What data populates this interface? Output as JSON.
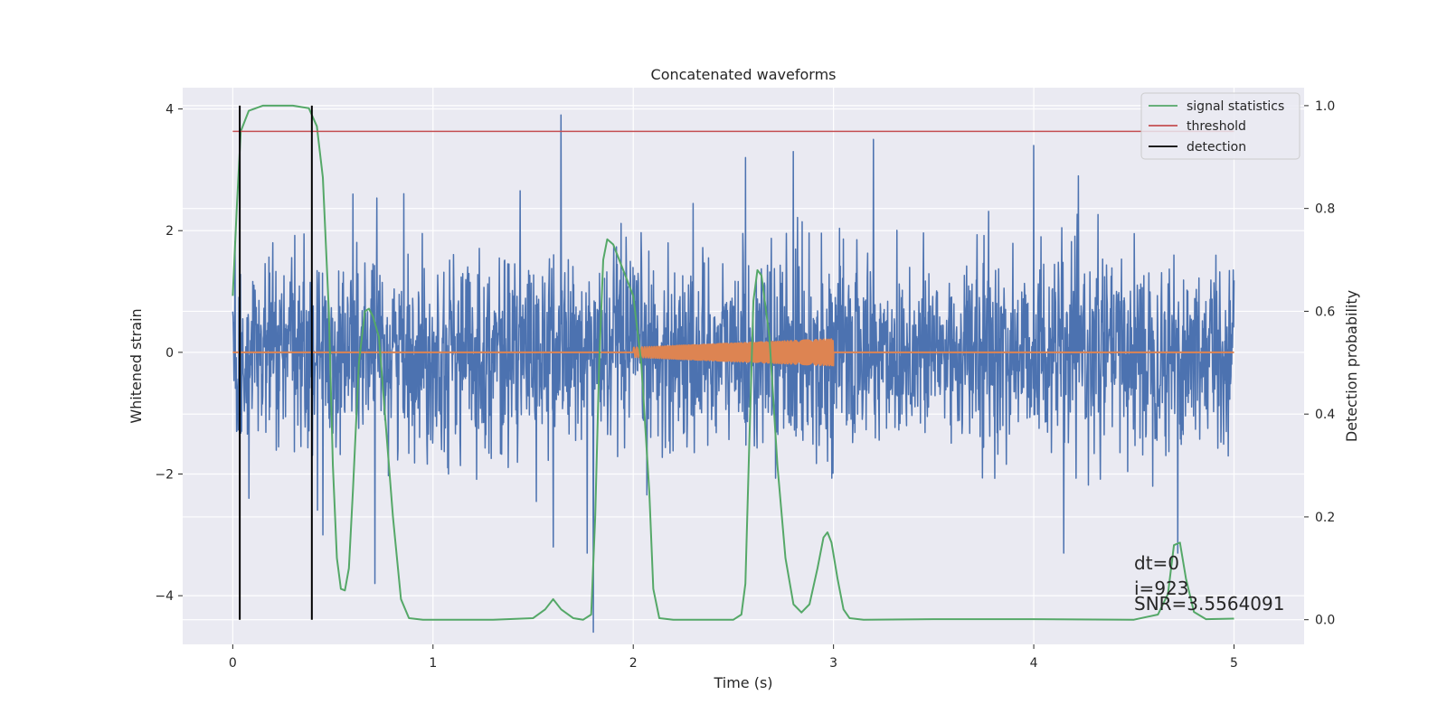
{
  "chart_data": {
    "type": "line",
    "title": "Concatenated waveforms",
    "xlabel": "Time (s)",
    "ylabel": "Whitened strain",
    "y2label": "Detection probability",
    "xlim": [
      -0.25,
      5.35
    ],
    "ylim": [
      -4.8,
      4.35
    ],
    "y2lim": [
      -0.048,
      1.035
    ],
    "xticks": [
      0,
      1,
      2,
      3,
      4,
      5
    ],
    "yticks": [
      -4,
      -2,
      0,
      2,
      4
    ],
    "y2ticks": [
      0.0,
      0.2,
      0.4,
      0.6,
      0.8,
      1.0
    ],
    "grid": true,
    "legend_position": "top-right",
    "legend": [
      "signal statistics",
      "threshold",
      "detection"
    ],
    "colors": {
      "noise": "#4c72b0",
      "injection": "#dd8452",
      "statistic": "#55a868",
      "threshold": "#c44e52",
      "detection": "#000000",
      "plot_bg": "#eaeaf2",
      "grid": "#ffffff"
    },
    "series": [
      {
        "axis": "left",
        "role": "noise",
        "x_range": [
          0,
          5
        ],
        "envelope_typical": [
          -2.0,
          2.0
        ],
        "peaks": [
          [
            0.08,
            -2.4
          ],
          [
            0.2,
            1.8
          ],
          [
            0.45,
            -3.0
          ],
          [
            0.6,
            2.6
          ],
          [
            0.71,
            -3.8
          ],
          [
            1.6,
            -3.2
          ],
          [
            1.64,
            3.9
          ],
          [
            1.77,
            -3.3
          ],
          [
            1.8,
            -4.6
          ],
          [
            2.56,
            3.2
          ],
          [
            2.8,
            3.3
          ],
          [
            3.2,
            3.5
          ],
          [
            4.0,
            3.4
          ],
          [
            4.15,
            -3.3
          ],
          [
            4.72,
            -3.3
          ]
        ]
      },
      {
        "axis": "left",
        "role": "injection",
        "x_range": [
          0,
          5
        ],
        "burst_range": [
          2.0,
          3.0
        ],
        "burst_amplitude": [
          0.08,
          0.22
        ]
      },
      {
        "axis": "right",
        "name": "signal statistics",
        "points": [
          [
            0.0,
            0.63
          ],
          [
            0.02,
            0.8
          ],
          [
            0.04,
            0.95
          ],
          [
            0.08,
            0.99
          ],
          [
            0.15,
            1.0
          ],
          [
            0.3,
            1.0
          ],
          [
            0.38,
            0.995
          ],
          [
            0.42,
            0.96
          ],
          [
            0.45,
            0.86
          ],
          [
            0.48,
            0.6
          ],
          [
            0.5,
            0.3
          ],
          [
            0.52,
            0.12
          ],
          [
            0.54,
            0.06
          ],
          [
            0.56,
            0.057
          ],
          [
            0.58,
            0.1
          ],
          [
            0.6,
            0.25
          ],
          [
            0.63,
            0.5
          ],
          [
            0.66,
            0.6
          ],
          [
            0.68,
            0.605
          ],
          [
            0.7,
            0.59
          ],
          [
            0.73,
            0.55
          ],
          [
            0.76,
            0.4
          ],
          [
            0.8,
            0.2
          ],
          [
            0.84,
            0.04
          ],
          [
            0.88,
            0.003
          ],
          [
            0.95,
            0.0
          ],
          [
            1.3,
            0.0
          ],
          [
            1.5,
            0.003
          ],
          [
            1.56,
            0.02
          ],
          [
            1.6,
            0.04
          ],
          [
            1.64,
            0.02
          ],
          [
            1.7,
            0.003
          ],
          [
            1.75,
            0.0
          ],
          [
            1.79,
            0.01
          ],
          [
            1.81,
            0.2
          ],
          [
            1.83,
            0.5
          ],
          [
            1.85,
            0.7
          ],
          [
            1.87,
            0.74
          ],
          [
            1.9,
            0.73
          ],
          [
            1.95,
            0.68
          ],
          [
            2.0,
            0.63
          ],
          [
            2.04,
            0.5
          ],
          [
            2.08,
            0.25
          ],
          [
            2.1,
            0.06
          ],
          [
            2.13,
            0.003
          ],
          [
            2.2,
            0.0
          ],
          [
            2.5,
            0.0
          ],
          [
            2.54,
            0.01
          ],
          [
            2.56,
            0.07
          ],
          [
            2.58,
            0.35
          ],
          [
            2.6,
            0.62
          ],
          [
            2.62,
            0.68
          ],
          [
            2.64,
            0.67
          ],
          [
            2.68,
            0.55
          ],
          [
            2.72,
            0.3
          ],
          [
            2.76,
            0.12
          ],
          [
            2.8,
            0.03
          ],
          [
            2.84,
            0.014
          ],
          [
            2.88,
            0.03
          ],
          [
            2.92,
            0.1
          ],
          [
            2.95,
            0.16
          ],
          [
            2.97,
            0.17
          ],
          [
            2.99,
            0.15
          ],
          [
            3.02,
            0.08
          ],
          [
            3.05,
            0.02
          ],
          [
            3.08,
            0.003
          ],
          [
            3.15,
            0.0
          ],
          [
            3.5,
            0.001
          ],
          [
            4.0,
            0.001
          ],
          [
            4.5,
            0.0
          ],
          [
            4.62,
            0.01
          ],
          [
            4.67,
            0.05
          ],
          [
            4.7,
            0.145
          ],
          [
            4.73,
            0.15
          ],
          [
            4.76,
            0.08
          ],
          [
            4.8,
            0.015
          ],
          [
            4.86,
            0.001
          ],
          [
            5.0,
            0.002
          ]
        ]
      },
      {
        "axis": "right",
        "name": "threshold",
        "value": 0.95,
        "x_range": [
          0,
          5
        ]
      },
      {
        "axis": "right",
        "name": "detection",
        "times": [
          0.035,
          0.395
        ]
      }
    ],
    "annotations": [
      "dt=0",
      "i=923",
      "SNR=3.5564091"
    ]
  }
}
